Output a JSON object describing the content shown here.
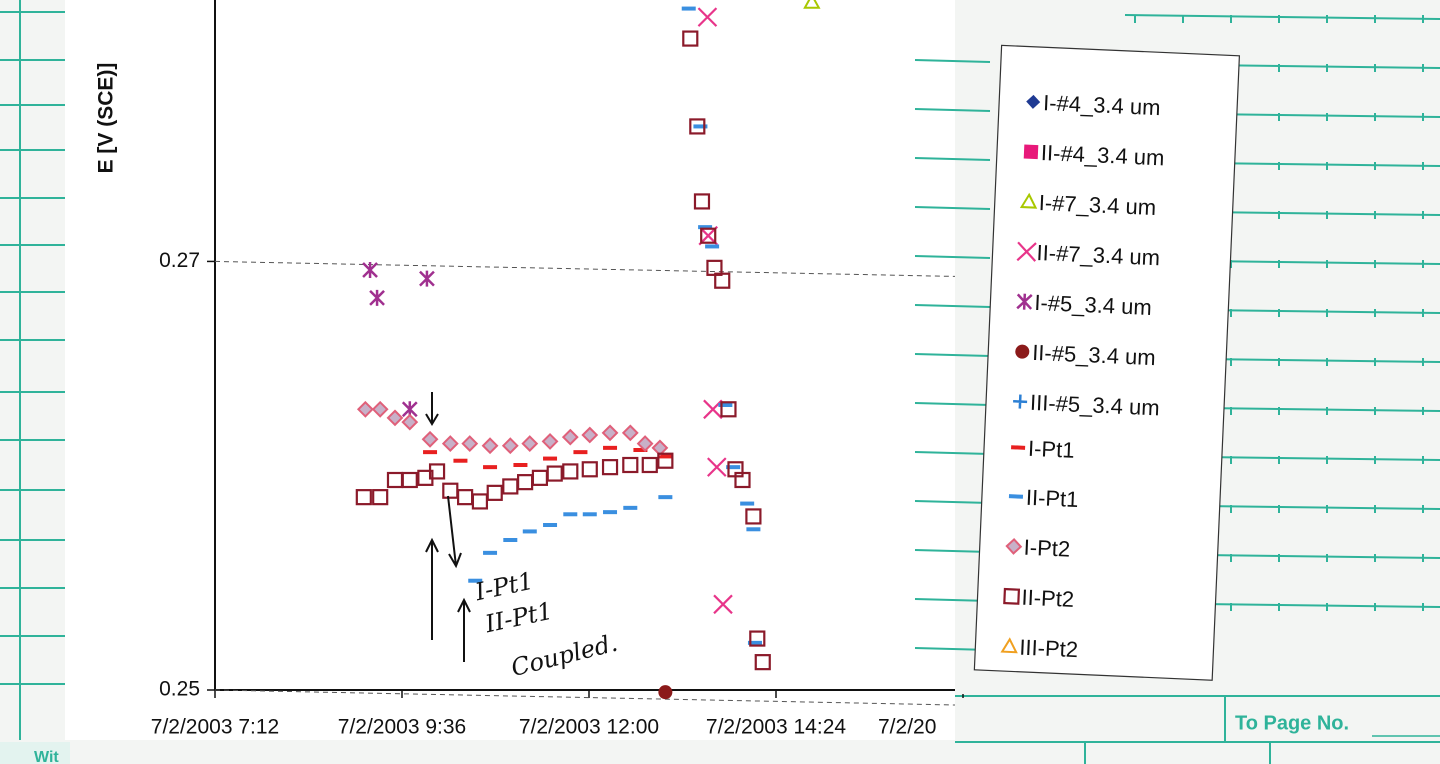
{
  "chart_data": {
    "type": "scatter",
    "y_label": "E [V (SCE)]",
    "xlim": [
      7.2,
      16.8
    ],
    "ylim": [
      0.25,
      0.2822
    ],
    "xticks": [
      {
        "value": 7.2,
        "label": "7/2/2003 7:12"
      },
      {
        "value": 9.6,
        "label": "7/2/2003 9:36"
      },
      {
        "value": 12,
        "label": "7/2/2003 12:00"
      },
      {
        "value": 14.4,
        "label": "7/2/2003 14:24"
      },
      {
        "value": 16.8,
        "label": "7/2/20"
      }
    ],
    "yticks": [
      0.25,
      0.27
    ],
    "grid": true,
    "legend": "right",
    "annotations": [
      "I-Pt1",
      "II-Pt1",
      "Coupled."
    ],
    "series": [
      {
        "name": "I-#4_3.4 um",
        "color": "#1f3a93",
        "marker": "diamond",
        "x": [],
        "values": []
      },
      {
        "name": "II-#4_3.4 um",
        "color": "#e8197a",
        "marker": "square",
        "x": [],
        "values": []
      },
      {
        "name": "I-#7_3.4 um",
        "color": "#a8c800",
        "marker": "triangle-open",
        "x": [
          14.86
        ],
        "values": [
          0.2821
        ]
      },
      {
        "name": "II-#7_3.4 um",
        "color": "#e8358a",
        "marker": "x",
        "x": [
          13.52,
          13.53,
          13.59,
          13.64,
          13.72
        ],
        "values": [
          0.2814,
          0.2712,
          0.2631,
          0.2604,
          0.254
        ]
      },
      {
        "name": "I-#5_3.4 um",
        "color": "#a0308f",
        "marker": "asterisk",
        "x": [
          9.19,
          9.28,
          9.92,
          9.7
        ],
        "values": [
          0.2696,
          0.2683,
          0.2692,
          0.2631
        ]
      },
      {
        "name": "II-#5_3.4 um",
        "color": "#8b1a1a",
        "marker": "circle",
        "x": [
          12.98
        ],
        "values": [
          0.2499
        ]
      },
      {
        "name": "III-#5_3.4 um",
        "color": "#2b7fd4",
        "marker": "plus",
        "x": [],
        "values": []
      },
      {
        "name": "I-Pt1",
        "color": "#e82020",
        "marker": "dash",
        "x": [
          9.96,
          10.35,
          10.73,
          11.12,
          11.5,
          11.89,
          12.27,
          12.66,
          12.98
        ],
        "values": [
          0.2611,
          0.2607,
          0.2604,
          0.2605,
          0.2608,
          0.2611,
          0.2613,
          0.2612,
          0.2609
        ]
      },
      {
        "name": "II-Pt1",
        "color": "#3a8fe0",
        "marker": "dash",
        "x": [
          10.54,
          10.73,
          10.99,
          11.24,
          11.5,
          11.76,
          12.01,
          12.27,
          12.53,
          12.98,
          13.28,
          13.43,
          13.49,
          13.58,
          13.75,
          13.85,
          14.03,
          14.11,
          14.13
        ],
        "values": [
          0.2551,
          0.2564,
          0.257,
          0.2574,
          0.2577,
          0.2582,
          0.2582,
          0.2583,
          0.2585,
          0.259,
          0.2818,
          0.2763,
          0.2716,
          0.2707,
          0.2633,
          0.2604,
          0.2587,
          0.2575,
          0.2522
        ]
      },
      {
        "name": "I-Pt2",
        "color": "#e0607a",
        "marker": "diamond-open",
        "x": [
          9.13,
          9.32,
          9.51,
          9.7,
          9.96,
          10.22,
          10.47,
          10.73,
          10.99,
          11.24,
          11.5,
          11.76,
          12.01,
          12.27,
          12.53,
          12.72,
          12.91
        ],
        "values": [
          0.2631,
          0.2631,
          0.2627,
          0.2625,
          0.2617,
          0.2615,
          0.2615,
          0.2614,
          0.2614,
          0.2615,
          0.2616,
          0.2618,
          0.2619,
          0.262,
          0.262,
          0.2615,
          0.2613
        ]
      },
      {
        "name": "II-Pt2",
        "color": "#8b1a2a",
        "marker": "square-open",
        "x": [
          9.11,
          9.32,
          9.51,
          9.7,
          9.9,
          10.05,
          10.22,
          10.41,
          10.6,
          10.79,
          10.99,
          11.18,
          11.37,
          11.56,
          11.76,
          12.01,
          12.27,
          12.53,
          12.78,
          12.98,
          13.3,
          13.39,
          13.45,
          13.53,
          13.61,
          13.71,
          13.79,
          13.88,
          13.97,
          14.11,
          14.16,
          14.23
        ],
        "values": [
          0.259,
          0.259,
          0.2598,
          0.2598,
          0.2599,
          0.2602,
          0.2593,
          0.259,
          0.2588,
          0.2592,
          0.2595,
          0.2597,
          0.2599,
          0.2601,
          0.2602,
          0.2603,
          0.2604,
          0.2605,
          0.2605,
          0.2607,
          0.2804,
          0.2763,
          0.2728,
          0.2712,
          0.2697,
          0.2691,
          0.2631,
          0.2603,
          0.2598,
          0.2581,
          0.2524,
          0.2513
        ]
      },
      {
        "name": "III-Pt2",
        "color": "#f0a020",
        "marker": "triangle-open",
        "x": [],
        "values": []
      }
    ]
  },
  "notebook": {
    "to_page": "To Page No.",
    "witness": "Wit"
  }
}
